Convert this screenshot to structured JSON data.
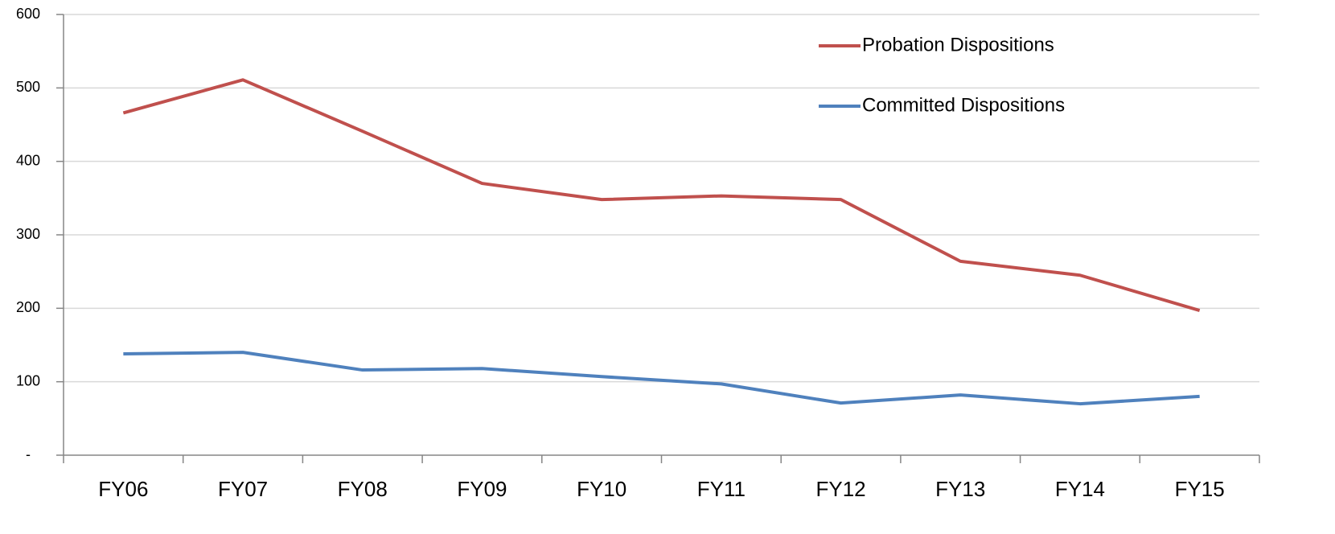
{
  "chart_data": {
    "type": "line",
    "categories": [
      "FY06",
      "FY07",
      "FY08",
      "FY09",
      "FY10",
      "FY11",
      "FY12",
      "FY13",
      "FY14",
      "FY15"
    ],
    "series": [
      {
        "name": "Probation Dispositions",
        "color": "#c0504d",
        "values": [
          466,
          511,
          441,
          370,
          348,
          353,
          348,
          264,
          245,
          197
        ]
      },
      {
        "name": "Committed Dispositions",
        "color": "#4f81bd",
        "values": [
          138,
          140,
          116,
          118,
          107,
          97,
          71,
          82,
          70,
          80
        ]
      }
    ],
    "ylim": [
      0,
      600
    ],
    "yticks": [
      {
        "value": 0,
        "label": "-"
      },
      100,
      200,
      300,
      400,
      500,
      600
    ],
    "grid": true,
    "legend": "top-right"
  }
}
